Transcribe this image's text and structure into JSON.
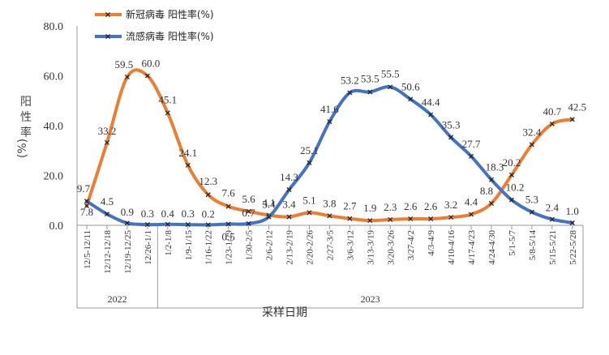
{
  "chart_data": {
    "type": "line",
    "categories": [
      "12/5-12/11",
      "12/12-12/18",
      "12/19-12/25",
      "12/26-1/1",
      "1/2-1/8",
      "1/9-1/15",
      "1/16-1/22",
      "1/23-1/29",
      "1/30-2/5",
      "2/6-2/12",
      "2/13-2/19",
      "2/20-2/26",
      "2/27-3/5",
      "3/6-3/12",
      "3/13-3/19",
      "3/20-3/26",
      "3/27-4/2",
      "4/3-4/9",
      "4/10-4/16",
      "4/17-4/23",
      "4/24-4/30",
      "5/1-5/7",
      "5/8-5/14",
      "5/15-5/21",
      "5/22-5/28"
    ],
    "year_groups": [
      {
        "label": "2022",
        "start": 0,
        "end": 3
      },
      {
        "label": "2023",
        "start": 4,
        "end": 24
      }
    ],
    "series": [
      {
        "name": "新冠病毒 阳性率(%)",
        "color": "#ed7d31",
        "values": [
          7.8,
          33.2,
          59.5,
          60.0,
          45.1,
          24.1,
          12.3,
          7.6,
          5.6,
          4.1,
          3.4,
          5.1,
          3.8,
          2.7,
          1.9,
          2.3,
          2.6,
          2.6,
          3.2,
          4.4,
          8.8,
          20.2,
          32.4,
          40.7,
          42.5
        ]
      },
      {
        "name": "流感病毒 阳性率(%)",
        "color": "#4472c4",
        "values": [
          9.7,
          4.5,
          0.9,
          0.3,
          0.4,
          0.3,
          0.2,
          0.5,
          0.7,
          3.4,
          14.3,
          25.1,
          41.6,
          53.2,
          53.5,
          55.5,
          50.6,
          44.4,
          35.3,
          27.7,
          18.3,
          10.2,
          5.3,
          2.4,
          1.0
        ]
      }
    ],
    "title": "",
    "xlabel": "采样日期",
    "ylabel": "阳性率(%)",
    "ylim": [
      0,
      80
    ],
    "yticks": [
      "0.0",
      "20.0",
      "40.0",
      "60.0",
      "80.0"
    ],
    "grid": false,
    "legend_position": "top-left"
  }
}
